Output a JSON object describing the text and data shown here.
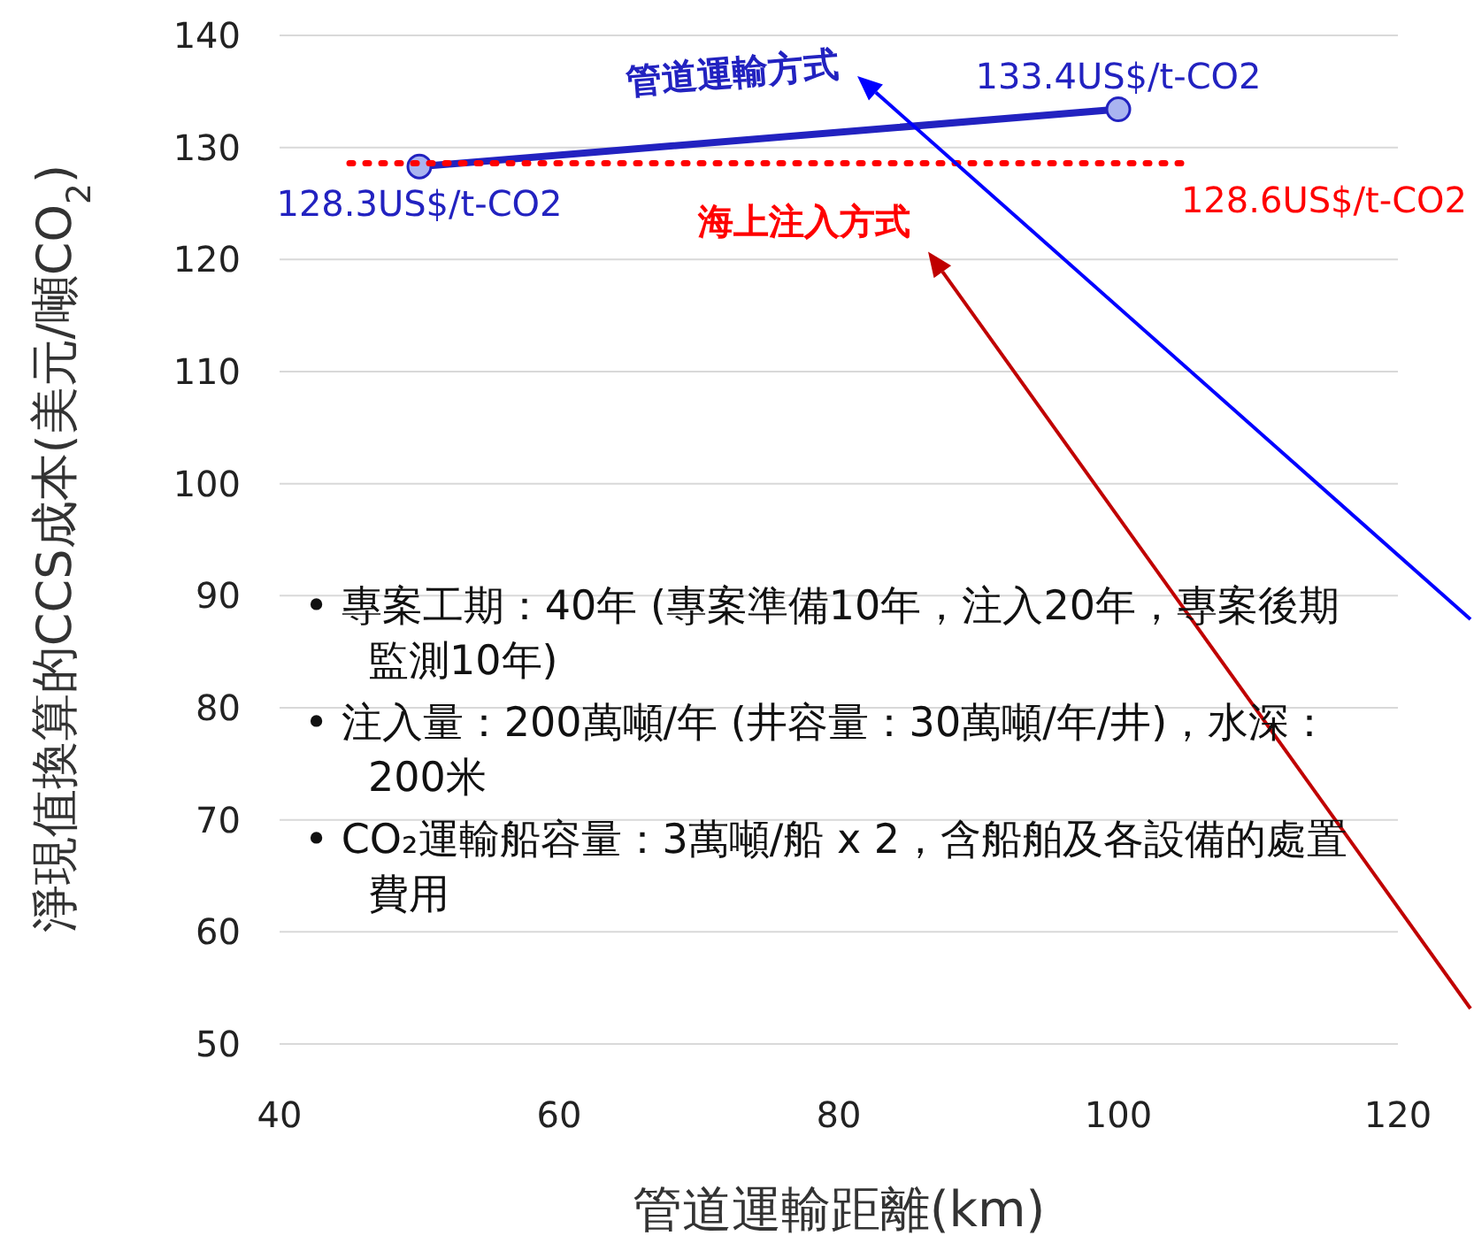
{
  "chart_data": {
    "type": "line",
    "xlabel": "管道運輸距離(km)",
    "ylabel": "淨現值換算的CCS成本(美元/噸CO$_{2}$)",
    "xlim": [
      40,
      120
    ],
    "xticks": [
      40,
      60,
      80,
      100,
      120
    ],
    "ylim": [
      50,
      140
    ],
    "yticks": [
      50,
      60,
      70,
      80,
      90,
      100,
      110,
      120,
      130,
      140
    ],
    "grid": "y",
    "series": [
      {
        "name": "管道運輸方式",
        "color": "#2222c0",
        "x": [
          50,
          100
        ],
        "values": [
          128.3,
          133.4
        ],
        "marker": "circle",
        "line_style": "solid",
        "value_labels": [
          "128.3US$/t-CO2",
          "133.4US$/t-CO2"
        ]
      },
      {
        "name": "海上注入方式",
        "color": "#ff0000",
        "x": [
          45,
          105
        ],
        "values": [
          128.6,
          128.6
        ],
        "marker": "none",
        "line_style": "dotted",
        "value_labels": [
          null,
          "128.6US$/t-CO2"
        ]
      }
    ],
    "annotations": [
      "•  專案工期：40年  (專案準備10年，注入20年，專案後期監測10年)",
      "•  注入量：200萬噸/年  (井容量：30萬噸/年/井)，水深：200米",
      "•  CO₂運輸船容量：3萬噸/船 x 2，含船舶及各設備的處置費用"
    ]
  }
}
